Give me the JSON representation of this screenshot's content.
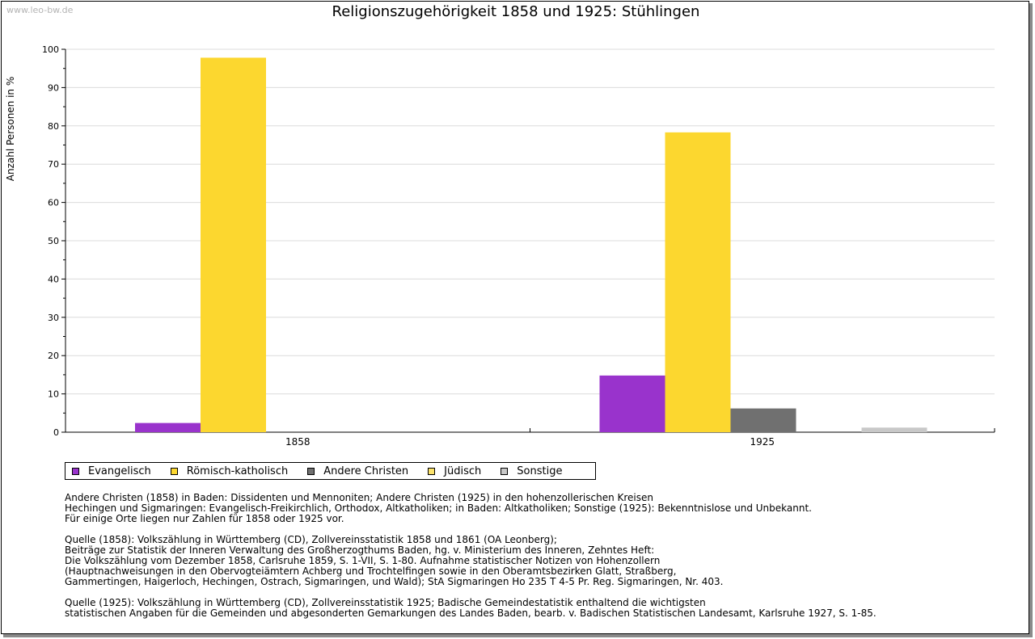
{
  "watermark": "www.leo-bw.de",
  "chart_data": {
    "type": "bar",
    "title": "Religionszugehörigkeit 1858 und 1925: Stühlingen",
    "xlabel": "",
    "ylabel": "Anzahl Personen in %",
    "ylim": [
      0,
      100
    ],
    "yticks": [
      0,
      10,
      20,
      30,
      40,
      50,
      60,
      70,
      80,
      90,
      100
    ],
    "grid": true,
    "categories": [
      "1858",
      "1925"
    ],
    "series": [
      {
        "name": "Evangelisch",
        "color": "#9933CC",
        "values": [
          2.4,
          14.8
        ]
      },
      {
        "name": "Römisch-katholisch",
        "color": "#FCD72F",
        "values": [
          97.8,
          78.3
        ]
      },
      {
        "name": "Andere Christen",
        "color": "#707070",
        "values": [
          0,
          6.2
        ]
      },
      {
        "name": "Jüdisch",
        "color": "#FCE36C",
        "values": [
          0,
          0
        ]
      },
      {
        "name": "Sonstige",
        "color": "#C8C8C8",
        "values": [
          0,
          1.2
        ]
      }
    ]
  },
  "notes": [
    "Andere Christen (1858) in Baden: Dissidenten und Mennoniten; Andere Christen (1925) in den hohenzollerischen Kreisen\nHechingen und Sigmaringen: Evangelisch-Freikirchlich, Orthodox, Altkatholiken; in Baden: Altkatholiken; Sonstige (1925): Bekenntnislose und Unbekannt.\nFür einige Orte liegen nur Zahlen für 1858 oder 1925 vor.",
    "Quelle (1858): Volkszählung in Württemberg (CD), Zollvereinsstatistik 1858 und 1861 (OA Leonberg);\nBeiträge zur Statistik der Inneren Verwaltung des Großherzogthums Baden, hg. v. Ministerium des Inneren, Zehntes Heft:\nDie Volkszählung vom Dezember 1858, Carlsruhe 1859, S. 1-VII, S. 1-80. Aufnahme statistischer Notizen von Hohenzollern\n(Hauptnachweisungen in den Obervogteiämtern Achberg und Trochtelfingen sowie in den Oberamtsbezirken Glatt, Straßberg,\nGammertingen, Haigerloch, Hechingen, Ostrach, Sigmaringen, und Wald); StA Sigmaringen Ho 235 T 4-5 Pr. Reg. Sigmaringen, Nr. 403.",
    "Quelle (1925): Volkszählung in Württemberg (CD), Zollvereinsstatistik 1925; Badische Gemeindestatistik enthaltend die wichtigsten\nstatistischen Angaben für die Gemeinden und abgesonderten Gemarkungen des Landes Baden, bearb. v. Badischen Statistischen Landesamt, Karlsruhe 1927, S. 1-85."
  ]
}
